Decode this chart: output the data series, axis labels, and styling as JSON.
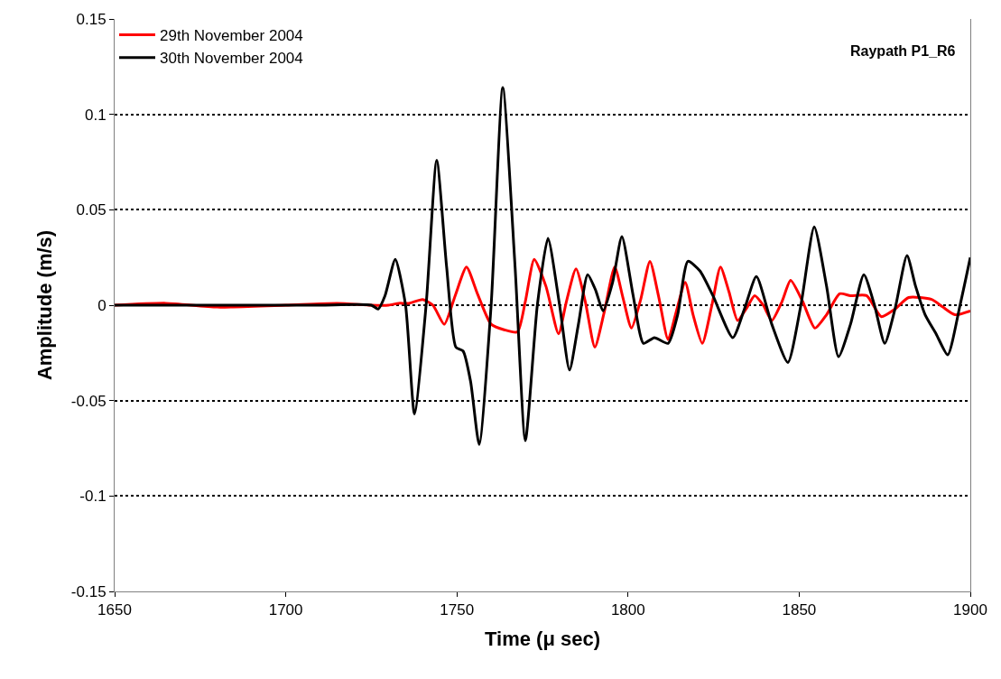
{
  "chart_data": {
    "type": "line",
    "xlabel": "Time (μ sec)",
    "ylabel": "Amplitude (m/s)",
    "xlim": [
      1650,
      1900
    ],
    "xticks": [
      1650,
      1700,
      1750,
      1800,
      1850,
      1900
    ],
    "ylim": [
      -0.15,
      0.15
    ],
    "yticks": [
      -0.15,
      -0.1,
      -0.05,
      0,
      0.05,
      0.1,
      0.15
    ],
    "grid": "y",
    "legend": "top left",
    "marker": "none",
    "line_style": "solid",
    "annotations": [
      "Raypath P1_R6"
    ],
    "series": [
      {
        "name": "29th November 2004",
        "color": "#ff0000",
        "x": [
          1650,
          1665,
          1680,
          1700,
          1715,
          1725,
          1730,
          1733,
          1736,
          1740,
          1743,
          1746.3,
          1749.5,
          1752.8,
          1756,
          1760,
          1764,
          1767.7,
          1770,
          1772.6,
          1776,
          1779.7,
          1782,
          1784.8,
          1787.5,
          1790.3,
          1793,
          1796.1,
          1798.5,
          1801,
          1803.7,
          1806.4,
          1809,
          1811.7,
          1814,
          1816.7,
          1819,
          1821.7,
          1824.5,
          1827,
          1829.5,
          1832,
          1834.5,
          1837,
          1839.5,
          1842,
          1845,
          1847.5,
          1851,
          1854.6,
          1858,
          1861.8,
          1865,
          1869.7,
          1874,
          1878,
          1882,
          1888.7,
          1892,
          1895.5,
          1900
        ],
        "values": [
          0,
          0.001,
          -0.001,
          0,
          0.001,
          0,
          0,
          0.001,
          0.001,
          0.003,
          0,
          -0.01,
          0.005,
          0.02,
          0.006,
          -0.01,
          -0.013,
          -0.014,
          0.002,
          0.024,
          0.01,
          -0.015,
          0.002,
          0.019,
          0.002,
          -0.022,
          -0.004,
          0.02,
          0.004,
          -0.012,
          0.003,
          0.023,
          0.004,
          -0.018,
          -0.004,
          0.012,
          -0.005,
          -0.02,
          0,
          0.02,
          0.007,
          -0.008,
          -0.002,
          0.005,
          0,
          -0.008,
          0.002,
          0.013,
          0.002,
          -0.012,
          -0.005,
          0.006,
          0.005,
          0.005,
          -0.006,
          -0.002,
          0.004,
          0.003,
          -0.001,
          -0.005,
          -0.003
        ]
      },
      {
        "name": "30th November 2004",
        "color": "#000000",
        "x": [
          1650,
          1670,
          1690,
          1710,
          1725,
          1727,
          1729,
          1732,
          1735,
          1737.6,
          1741,
          1744.1,
          1747,
          1749.7,
          1751.8,
          1754,
          1756.5,
          1760,
          1763.4,
          1767,
          1770,
          1773.5,
          1776.6,
          1780,
          1782.9,
          1785.5,
          1788.2,
          1790.5,
          1792.7,
          1795.5,
          1798.2,
          1801.5,
          1804.5,
          1807.7,
          1811.7,
          1814.5,
          1817.5,
          1821,
          1824.8,
          1830.6,
          1834,
          1837.5,
          1842,
          1846.7,
          1850.5,
          1854.4,
          1858,
          1861.5,
          1865,
          1868.9,
          1872,
          1875,
          1878,
          1881.5,
          1884,
          1886.8,
          1890,
          1893.4,
          1897,
          1900
        ],
        "values": [
          0,
          0,
          0,
          0,
          0,
          -0.002,
          0.005,
          0.024,
          0,
          -0.057,
          0,
          0.076,
          0.02,
          -0.022,
          -0.024,
          -0.04,
          -0.073,
          0,
          0.114,
          0.02,
          -0.071,
          0,
          0.035,
          0,
          -0.034,
          -0.01,
          0.016,
          0.008,
          -0.003,
          0.012,
          0.036,
          0.005,
          -0.02,
          -0.017,
          -0.02,
          -0.005,
          0.023,
          0.018,
          0.005,
          -0.017,
          -0.002,
          0.015,
          -0.01,
          -0.03,
          0,
          0.041,
          0.01,
          -0.027,
          -0.01,
          0.016,
          0,
          -0.02,
          -0.002,
          0.026,
          0.01,
          -0.005,
          -0.015,
          -0.026,
          0,
          0.025
        ]
      }
    ]
  }
}
